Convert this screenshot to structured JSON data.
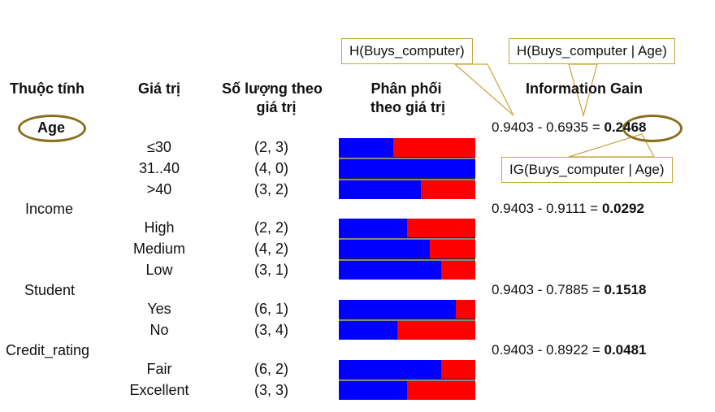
{
  "headers": {
    "attribute": "Thuộc tính",
    "value": "Giá trị",
    "count_line1": "Số lượng theo",
    "count_line2": "giá trị",
    "dist_line1": "Phân phối",
    "dist_line2": "theo giá trị",
    "ig": "Information Gain"
  },
  "attributes": [
    {
      "name": "Age",
      "formula": "0.9403 - 0.6935 =",
      "result": "0.2468",
      "values": [
        {
          "label": "≤30",
          "count": "(2, 3)",
          "blue_fraction": 0.4
        },
        {
          "label": "31..40",
          "count": "(4, 0)",
          "blue_fraction": 1.0
        },
        {
          "label": ">40",
          "count": "(3, 2)",
          "blue_fraction": 0.6
        }
      ]
    },
    {
      "name": "Income",
      "formula": "0.9403 - 0.9111 =",
      "result": "0.0292",
      "values": [
        {
          "label": "High",
          "count": "(2, 2)",
          "blue_fraction": 0.5
        },
        {
          "label": "Medium",
          "count": "(4, 2)",
          "blue_fraction": 0.667
        },
        {
          "label": "Low",
          "count": "(3, 1)",
          "blue_fraction": 0.75
        }
      ]
    },
    {
      "name": "Student",
      "formula": "0.9403 - 0.7885 =",
      "result": "0.1518",
      "values": [
        {
          "label": "Yes",
          "count": "(6, 1)",
          "blue_fraction": 0.857
        },
        {
          "label": "No",
          "count": "(3, 4)",
          "blue_fraction": 0.429
        }
      ]
    },
    {
      "name": "Credit_rating",
      "formula": "0.9403 - 0.8922 =",
      "result": "0.0481",
      "values": [
        {
          "label": "Fair",
          "count": "(6, 2)",
          "blue_fraction": 0.75
        },
        {
          "label": "Excellent",
          "count": "(3, 3)",
          "blue_fraction": 0.5
        }
      ]
    }
  ],
  "callouts": {
    "h_total": "H(Buys_computer)",
    "h_cond": "H(Buys_computer | Age)",
    "ig": "IG(Buys_computer | Age)"
  },
  "colors": {
    "yes": "#0000ff",
    "no": "#ff0000",
    "accent": "#8a6d1a"
  }
}
